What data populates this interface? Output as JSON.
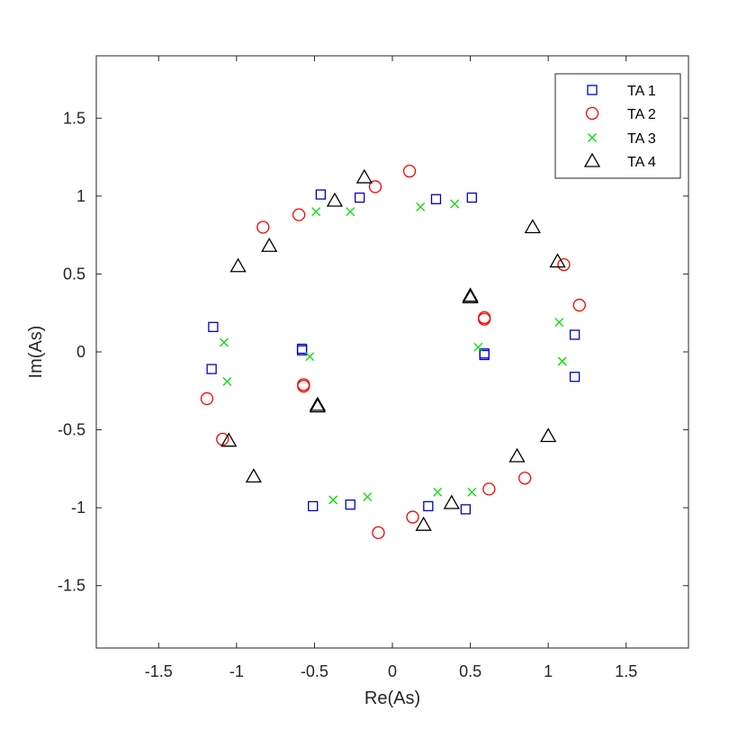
{
  "chart_data": {
    "type": "scatter",
    "xlabel": "Re(As)",
    "ylabel": "Im(As)",
    "xlim": [
      -1.9,
      1.9
    ],
    "ylim": [
      -1.9,
      1.9
    ],
    "xticks": [
      -1.5,
      -1,
      -0.5,
      0,
      0.5,
      1,
      1.5
    ],
    "yticks": [
      -1.5,
      -1,
      -0.5,
      0,
      0.5,
      1,
      1.5
    ],
    "xtick_labels": [
      "-1.5",
      "-1",
      "-0.5",
      "0",
      "0.5",
      "1",
      "1.5"
    ],
    "ytick_labels": [
      "-1.5",
      "-1",
      "-0.5",
      "0",
      "0.5",
      "1",
      "1.5"
    ],
    "grid": false,
    "legend_position": "top-right",
    "series": [
      {
        "name": "TA 1",
        "marker": "square",
        "color": "#0000cc",
        "points": [
          [
            -0.46,
            1.01
          ],
          [
            -0.21,
            0.99
          ],
          [
            0.28,
            0.98
          ],
          [
            0.51,
            0.99
          ],
          [
            -1.15,
            0.16
          ],
          [
            -1.16,
            -0.11
          ],
          [
            -0.58,
            0.02
          ],
          [
            -0.58,
            0.01
          ],
          [
            0.59,
            -0.01
          ],
          [
            0.59,
            -0.02
          ],
          [
            1.17,
            0.11
          ],
          [
            1.17,
            -0.16
          ],
          [
            -0.51,
            -0.99
          ],
          [
            -0.27,
            -0.98
          ],
          [
            0.23,
            -0.99
          ],
          [
            0.47,
            -1.01
          ]
        ]
      },
      {
        "name": "TA 2",
        "marker": "circle",
        "color": "#ff0000",
        "points": [
          [
            0.11,
            1.16
          ],
          [
            -0.11,
            1.06
          ],
          [
            -0.6,
            0.88
          ],
          [
            -0.83,
            0.8
          ],
          [
            1.1,
            0.56
          ],
          [
            1.2,
            0.3
          ],
          [
            0.59,
            0.22
          ],
          [
            0.59,
            0.21
          ],
          [
            -0.57,
            -0.21
          ],
          [
            -0.57,
            -0.22
          ],
          [
            -1.19,
            -0.3
          ],
          [
            -1.09,
            -0.56
          ],
          [
            0.85,
            -0.81
          ],
          [
            0.62,
            -0.88
          ],
          [
            0.13,
            -1.06
          ],
          [
            -0.09,
            -1.16
          ]
        ]
      },
      {
        "name": "TA 3",
        "marker": "x",
        "color": "#00dd00",
        "points": [
          [
            -0.49,
            0.9
          ],
          [
            -0.27,
            0.9
          ],
          [
            0.18,
            0.93
          ],
          [
            0.4,
            0.95
          ],
          [
            -1.08,
            0.06
          ],
          [
            -1.06,
            -0.19
          ],
          [
            -0.53,
            -0.03
          ],
          [
            0.55,
            0.03
          ],
          [
            1.07,
            0.19
          ],
          [
            1.09,
            -0.06
          ],
          [
            -0.38,
            -0.95
          ],
          [
            -0.16,
            -0.93
          ],
          [
            0.29,
            -0.9
          ],
          [
            0.51,
            -0.9
          ]
        ]
      },
      {
        "name": "TA 4",
        "marker": "triangle",
        "color": "#000000",
        "points": [
          [
            -0.18,
            1.12
          ],
          [
            -0.37,
            0.97
          ],
          [
            0.9,
            0.8
          ],
          [
            1.06,
            0.58
          ],
          [
            -0.79,
            0.68
          ],
          [
            -0.99,
            0.55
          ],
          [
            0.5,
            0.36
          ],
          [
            0.5,
            0.35
          ],
          [
            -0.48,
            -0.34
          ],
          [
            -0.48,
            -0.35
          ],
          [
            -1.05,
            -0.57
          ],
          [
            -0.89,
            -0.8
          ],
          [
            1.0,
            -0.54
          ],
          [
            0.8,
            -0.67
          ],
          [
            0.38,
            -0.97
          ],
          [
            0.2,
            -1.11
          ]
        ]
      }
    ]
  }
}
